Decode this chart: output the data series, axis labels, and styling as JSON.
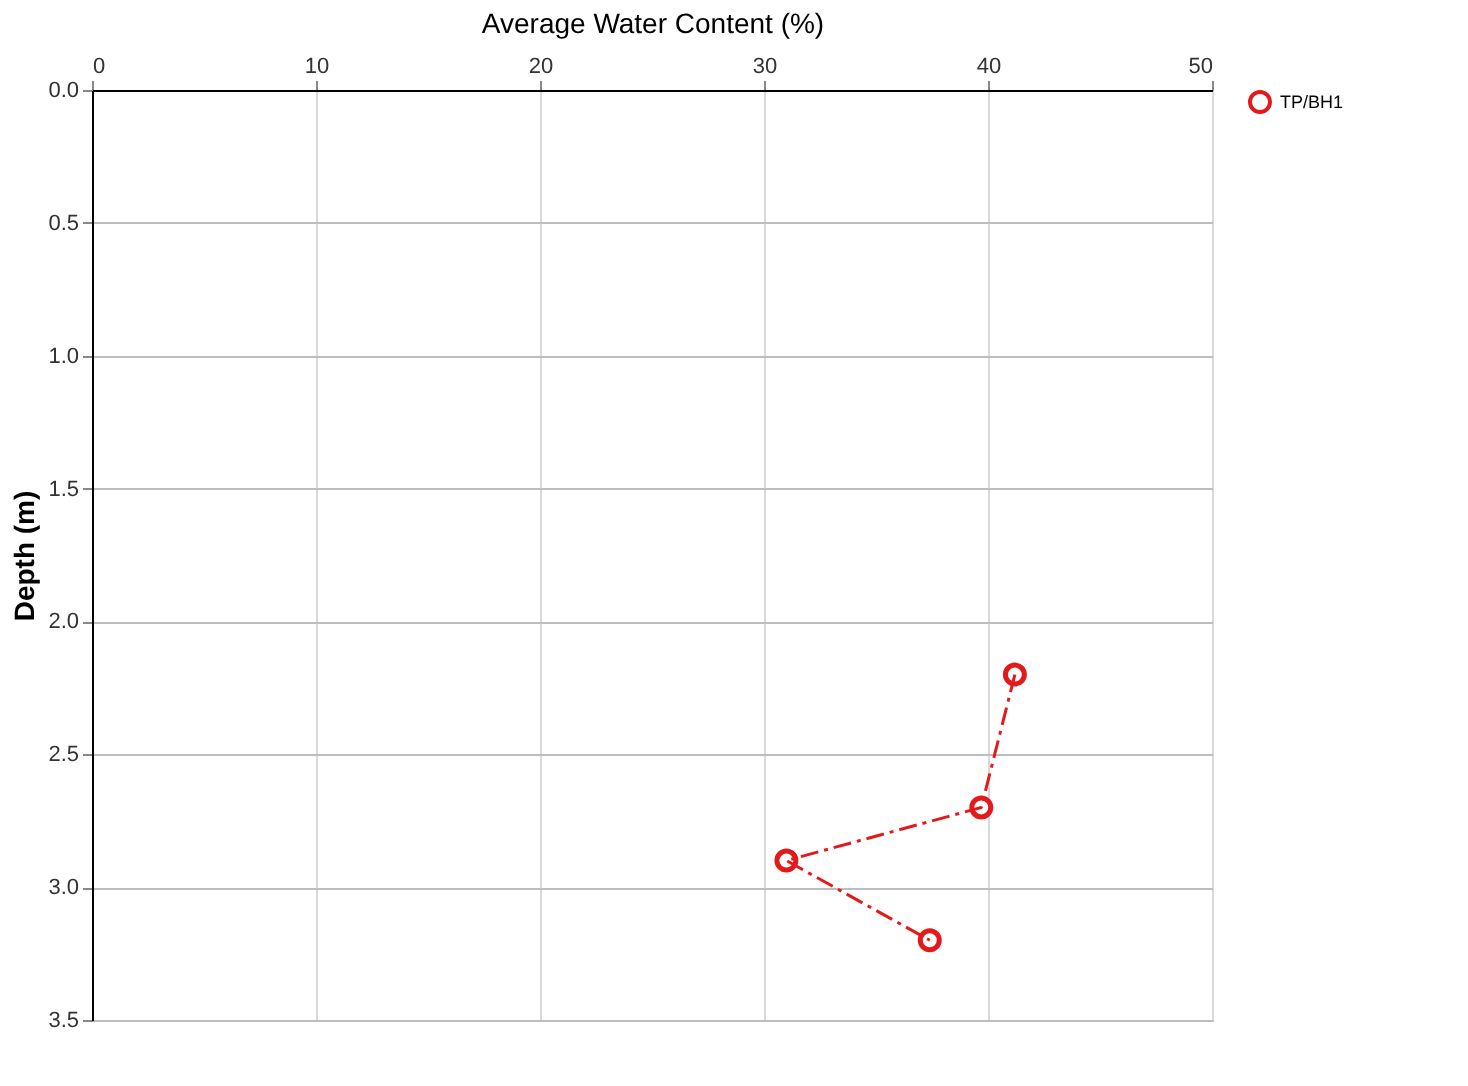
{
  "chart_data": {
    "type": "line",
    "xlabel": "Average Water Content (%)",
    "ylabel": "Depth (m)",
    "xlim": [
      0,
      50
    ],
    "xticks": [
      0,
      10,
      20,
      30,
      40,
      50
    ],
    "ylim": [
      3.5,
      0
    ],
    "yticks": [
      {
        "value": 0,
        "label": "0.0"
      },
      0.5,
      {
        "value": 1,
        "label": "1.0"
      },
      1.5,
      {
        "value": 2,
        "label": "2.0"
      },
      2.5,
      {
        "value": 3,
        "label": "3.0"
      },
      3.5
    ],
    "grid": true,
    "legend": "right",
    "marker": "circle",
    "line_style": "dashed",
    "series": [
      {
        "name": "TP/BH1",
        "color": "#e31a1c",
        "x": [
          41.2,
          39.7,
          31.0,
          37.4
        ],
        "values": [
          2.2,
          2.7,
          2.9,
          3.2
        ]
      }
    ]
  }
}
